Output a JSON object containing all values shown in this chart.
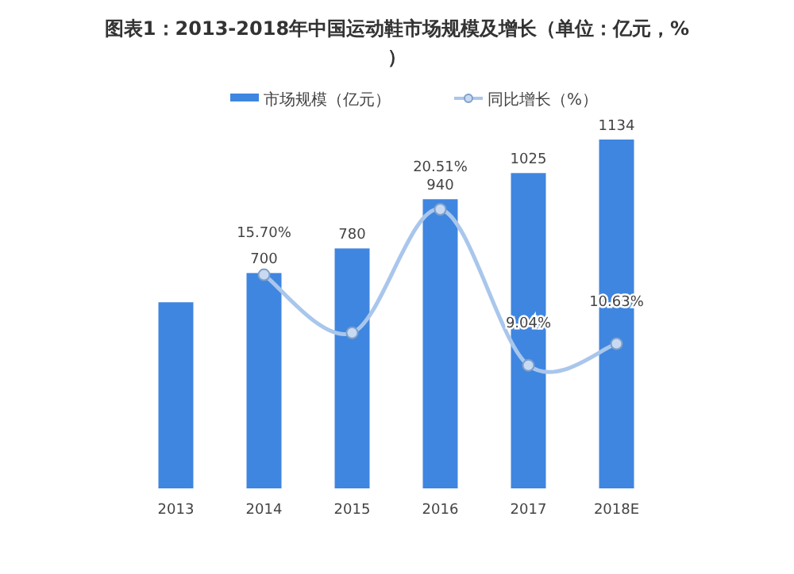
{
  "chart_data": {
    "type": "bar",
    "title": "图表1：2013-2018年中国运动鞋市场规模及增长（单位：亿元，%）",
    "categories": [
      "2013",
      "2014",
      "2015",
      "2016",
      "2017",
      "2018E"
    ],
    "series": [
      {
        "name": "市场规模（亿元）",
        "color": "#3f86e0",
        "values": [
          605,
          700,
          780,
          940,
          1025,
          1134
        ],
        "value_labels": [
          null,
          "700",
          "780",
          "940",
          "1025",
          "1134"
        ]
      },
      {
        "name": "同比增长（%）",
        "type": "line",
        "axis": "y2",
        "color": "#a9c6ec",
        "marker": "circle",
        "line_style": "solid",
        "values": [
          null,
          15.7,
          11.43,
          20.51,
          9.04,
          10.63
        ],
        "value_labels": [
          null,
          "15.70%",
          null,
          "20.51%",
          "9.04%",
          "10.63%"
        ]
      }
    ],
    "legend": "top"
  }
}
